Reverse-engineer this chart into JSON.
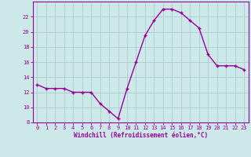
{
  "x": [
    0,
    1,
    2,
    3,
    4,
    5,
    6,
    7,
    8,
    9,
    10,
    11,
    12,
    13,
    14,
    15,
    16,
    17,
    18,
    19,
    20,
    21,
    22,
    23
  ],
  "y": [
    13,
    12.5,
    12.5,
    12.5,
    12,
    12,
    12,
    10.5,
    9.5,
    8.5,
    12.5,
    16,
    19.5,
    21.5,
    23,
    23,
    22.5,
    21.5,
    20.5,
    17,
    15.5,
    15.5,
    15.5,
    15
  ],
  "line_color": "#990099",
  "marker": "+",
  "marker_size": 3,
  "bg_color": "#cce8e8",
  "grid_color": "#aacccc",
  "xlabel": "Windchill (Refroidissement éolien,°C)",
  "xlabel_color": "#990099",
  "tick_color": "#990099",
  "ylim": [
    8,
    24
  ],
  "xlim": [
    -0.5,
    23.5
  ],
  "yticks": [
    8,
    10,
    12,
    14,
    16,
    18,
    20,
    22
  ],
  "xticks": [
    0,
    1,
    2,
    3,
    4,
    5,
    6,
    7,
    8,
    9,
    10,
    11,
    12,
    13,
    14,
    15,
    16,
    17,
    18,
    19,
    20,
    21,
    22,
    23
  ],
  "line_width": 1.0,
  "marker_edge_width": 1.0
}
